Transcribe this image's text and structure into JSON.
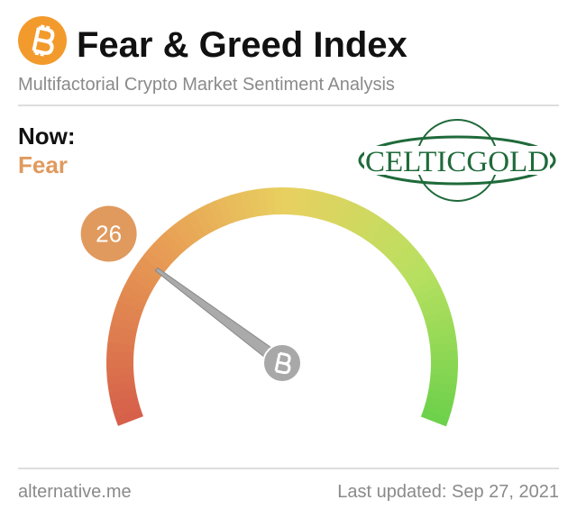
{
  "chart_data": {
    "type": "gauge",
    "title": "Fear & Greed Index",
    "subtitle": "Multifactorial Crypto Market Sentiment Analysis",
    "now_label": "Now:",
    "classification": "Fear",
    "value": 26,
    "ylim": [
      0,
      100
    ],
    "color": "#e09a5e",
    "logo": "CELTICGOLD",
    "source": "alternative.me",
    "updated": "Last updated: Sep 27, 2021"
  }
}
